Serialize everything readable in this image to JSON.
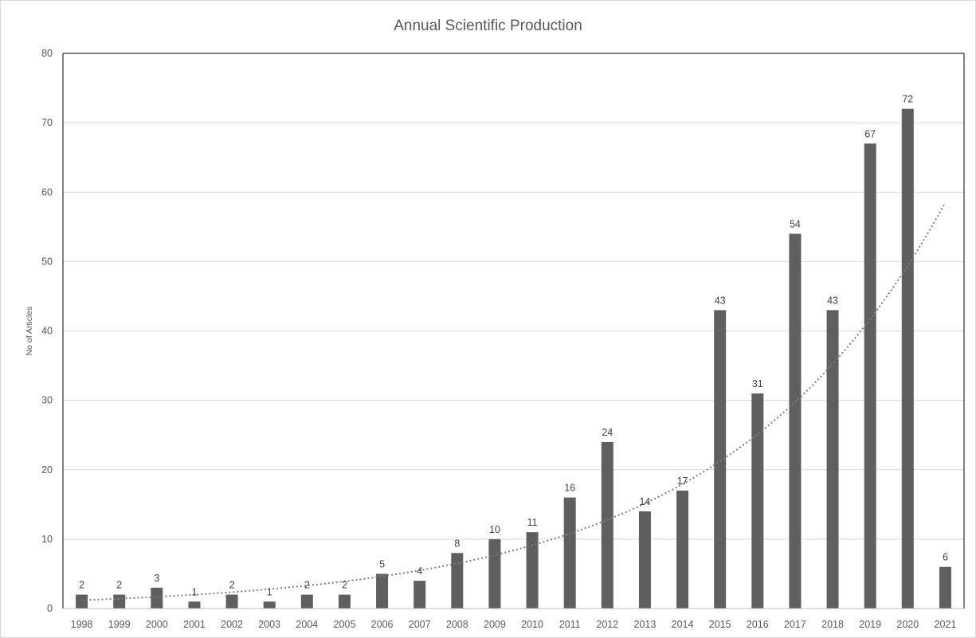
{
  "chart_data": {
    "type": "bar",
    "title": "Annual Scientific Production",
    "xlabel": "",
    "ylabel": "No of Articles",
    "ylim": [
      0,
      80
    ],
    "yticks": [
      0,
      10,
      20,
      30,
      40,
      50,
      60,
      70,
      80
    ],
    "grid": true,
    "legend": "none",
    "categories": [
      "1998",
      "1999",
      "2000",
      "2001",
      "2002",
      "2003",
      "2004",
      "2005",
      "2006",
      "2007",
      "2008",
      "2009",
      "2010",
      "2011",
      "2012",
      "2013",
      "2014",
      "2015",
      "2016",
      "2017",
      "2018",
      "2019",
      "2020",
      "2021"
    ],
    "values": [
      2,
      2,
      3,
      1,
      2,
      1,
      2,
      2,
      5,
      4,
      8,
      10,
      11,
      16,
      24,
      14,
      17,
      43,
      31,
      54,
      43,
      67,
      72,
      6
    ],
    "data_labels": true,
    "trendline": {
      "type": "exponential",
      "style": "dotted",
      "start_value": 1.2,
      "end_value": 58.5
    },
    "colors": {
      "bar": "#5f5f5f",
      "grid": "#d9d9d9",
      "trend": "#7f7f7f",
      "axis": "#000000"
    }
  }
}
